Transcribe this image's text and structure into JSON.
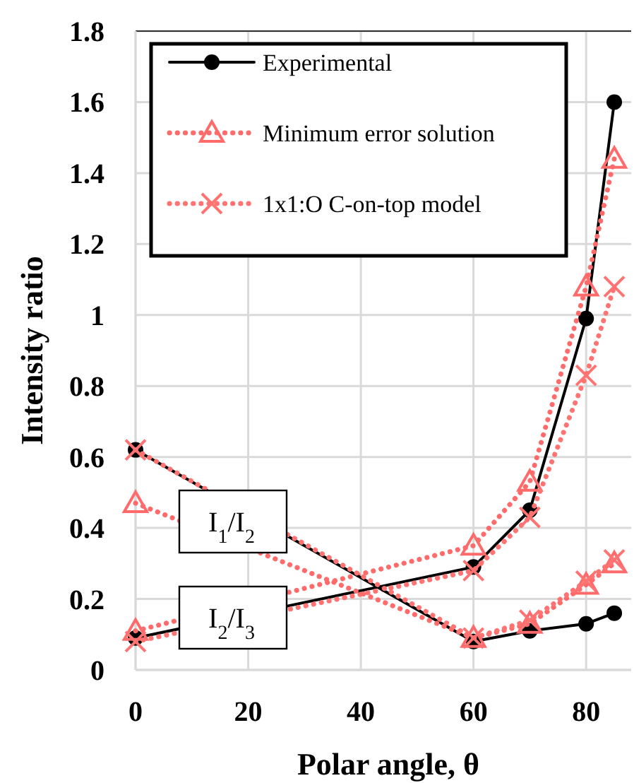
{
  "chart_data": {
    "type": "line",
    "xlabel": "Polar angle, θ",
    "ylabel": "Intensity ratio",
    "xlim": [
      0,
      88
    ],
    "ylim": [
      0,
      1.8
    ],
    "xticks": [
      0,
      20,
      40,
      60,
      80
    ],
    "yticks": [
      0,
      0.2,
      0.4,
      0.6,
      0.8,
      1,
      1.2,
      1.4,
      1.6,
      1.8
    ],
    "grid": true,
    "legend": "top left",
    "x": [
      0,
      60,
      70,
      80,
      85
    ],
    "series": [
      {
        "name": "Experimental",
        "color": "#000000",
        "marker": "circle",
        "line_style": "solid",
        "values": [
          0.09,
          0.29,
          0.45,
          0.99,
          1.6
        ]
      },
      {
        "name": "Minimum error solution",
        "color": "#ff6b6b",
        "marker": "triangle",
        "line_style": "dotted",
        "values": [
          0.11,
          0.35,
          0.53,
          1.08,
          1.44
        ]
      },
      {
        "name": "1x1:O C-on-top model",
        "color": "#ff7373",
        "marker": "cross",
        "line_style": "dotted",
        "values": [
          0.08,
          0.28,
          0.43,
          0.83,
          1.08
        ]
      },
      {
        "color": "#000000",
        "marker": "circle",
        "line_style": "solid",
        "values": [
          0.62,
          0.08,
          0.11,
          0.13,
          0.16
        ]
      },
      {
        "color": "#ff6b6b",
        "marker": "triangle",
        "line_style": "dotted",
        "values": [
          0.47,
          0.09,
          0.13,
          0.24,
          0.3
        ]
      },
      {
        "color": "#ff7373",
        "marker": "cross",
        "line_style": "dotted",
        "values": [
          0.62,
          0.09,
          0.14,
          0.25,
          0.31
        ]
      }
    ],
    "annotations": [
      "I$_{1}$/I$_{2}$",
      "I$_{2}$/I$_{3}$"
    ]
  }
}
